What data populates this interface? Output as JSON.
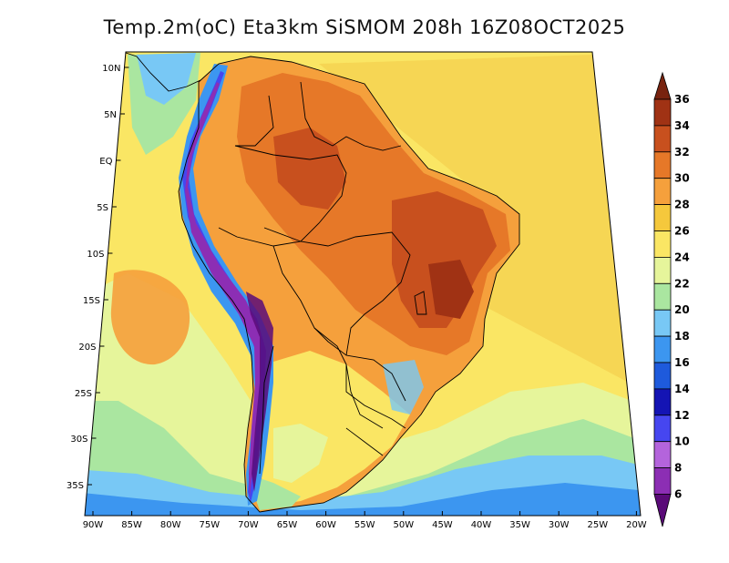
{
  "title": "Temp.2m(oC) Eta3km SiSMOM 208h 16Z08OCT2025",
  "axes": {
    "lat_ticks": [
      "10N",
      "5N",
      "EQ",
      "5S",
      "10S",
      "15S",
      "20S",
      "25S",
      "30S",
      "35S"
    ],
    "lon_ticks": [
      "90W",
      "85W",
      "80W",
      "75W",
      "70W",
      "65W",
      "60W",
      "55W",
      "50W",
      "45W",
      "40W",
      "35W",
      "30W",
      "25W",
      "20W"
    ]
  },
  "colorbar": {
    "levels": [
      "6",
      "8",
      "10",
      "12",
      "14",
      "16",
      "18",
      "20",
      "22",
      "24",
      "26",
      "28",
      "30",
      "32",
      "34",
      "36"
    ],
    "colors": [
      "#5a0a78",
      "#8c2eb4",
      "#b464dc",
      "#4646f0",
      "#1414b4",
      "#1e5adc",
      "#3c96f0",
      "#78c8f5",
      "#aae6a0",
      "#e6f59b",
      "#fae664",
      "#f5c83c",
      "#f5a03c",
      "#e67828",
      "#c8501e",
      "#a03214",
      "#78230f"
    ]
  },
  "colors": {
    "ocean_tropical": "#f5c83c",
    "ocean_cool": "#e6f59b",
    "land_hot": "#c8501e",
    "andes_cold": "#4646f0"
  }
}
